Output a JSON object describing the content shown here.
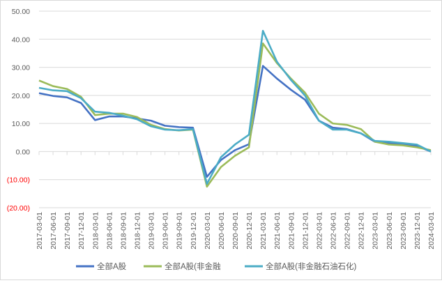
{
  "chart_data": {
    "type": "line",
    "title": "",
    "xlabel": "",
    "ylabel": "",
    "ylim": [
      -20,
      50
    ],
    "yticks": [
      50,
      40,
      30,
      20,
      10,
      0,
      -10,
      -20
    ],
    "ytick_labels": [
      "50.00",
      "40.00",
      "30.00",
      "20.00",
      "10.00",
      "0.00",
      "(10.00)",
      "(20.00)"
    ],
    "negative_label_color": "#ff0000",
    "grid": true,
    "legend": "bottom",
    "categories": [
      "2017-03-01",
      "2017-06-01",
      "2017-09-01",
      "2017-12-01",
      "2018-03-01",
      "2018-06-01",
      "2018-09-01",
      "2018-12-01",
      "2019-03-01",
      "2019-06-01",
      "2019-09-01",
      "2019-12-01",
      "2020-03-01",
      "2020-06-01",
      "2020-09-01",
      "2020-12-01",
      "2021-03-01",
      "2021-06-01",
      "2021-09-01",
      "2021-12-01",
      "2022-03-01",
      "2022-06-01",
      "2022-09-01",
      "2022-12-01",
      "2023-03-01",
      "2023-06-01",
      "2023-09-01",
      "2023-12-01",
      "2024-03-01"
    ],
    "series": [
      {
        "name": "全部A股",
        "color": "#4472c4",
        "values": [
          20.8,
          19.8,
          19.3,
          17.3,
          11.2,
          12.5,
          12.5,
          11.8,
          11.0,
          9.2,
          8.7,
          8.5,
          -9.0,
          -3.0,
          0.5,
          2.6,
          30.5,
          26.0,
          22.0,
          18.5,
          11.0,
          8.5,
          8.0,
          6.5,
          3.5,
          3.0,
          2.5,
          2.0,
          0.0
        ]
      },
      {
        "name": "全部A股(非金融",
        "color": "#9bbb59",
        "values": [
          25.3,
          23.3,
          22.3,
          19.5,
          13.0,
          13.5,
          13.5,
          12.3,
          9.5,
          8.0,
          7.5,
          7.8,
          -12.5,
          -5.5,
          -1.5,
          1.5,
          38.5,
          31.5,
          26.0,
          21.0,
          13.5,
          10.0,
          9.5,
          8.0,
          3.5,
          2.5,
          2.2,
          1.5,
          0.5
        ]
      },
      {
        "name": "全部A股(非金融石油石化)",
        "color": "#4bacc6",
        "values": [
          22.7,
          21.8,
          21.5,
          19.0,
          14.2,
          13.8,
          12.8,
          11.5,
          9.0,
          7.8,
          7.6,
          8.0,
          -11.5,
          -2.0,
          2.5,
          6.0,
          43.0,
          32.0,
          25.5,
          20.0,
          11.0,
          7.8,
          7.8,
          6.5,
          3.8,
          3.5,
          3.0,
          2.5,
          0.0
        ]
      }
    ]
  }
}
